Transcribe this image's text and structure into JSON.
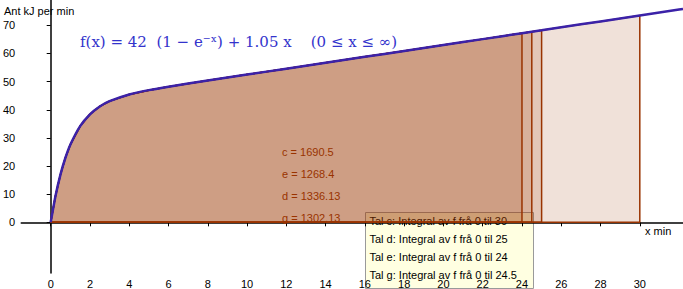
{
  "chart_data": {
    "type": "line",
    "title": "f(x) = 42  (1 − e⁻ˣ) + 1.05 x    (0 ≤ x ≤ ∞)",
    "x_label": "x min",
    "y_label": "Ant kJ per min",
    "x": [
      0,
      0.25,
      0.5,
      0.75,
      1,
      1.5,
      2,
      2.5,
      3,
      4,
      5,
      6,
      8,
      10,
      12,
      14,
      16,
      18,
      20,
      22,
      24,
      24.5,
      25,
      26,
      28,
      30,
      32,
      32.2
    ],
    "values": [
      0,
      9.55,
      17.05,
      22.95,
      27.6,
      34.2,
      38.4,
      41.18,
      43.06,
      45.43,
      46.97,
      48.2,
      50.39,
      52.5,
      54.6,
      56.7,
      58.8,
      60.9,
      63,
      65.1,
      67.2,
      67.73,
      68.25,
      69.3,
      71.4,
      73.5,
      75.6,
      75.81
    ],
    "color": "#3b22a8",
    "xlim": [
      -1.5,
      32.2
    ],
    "ylim": [
      -18,
      79
    ],
    "xticks": [
      0,
      2,
      4,
      6,
      8,
      10,
      12,
      14,
      16,
      18,
      20,
      22,
      24,
      26,
      28,
      30
    ],
    "yticks": [
      0,
      10,
      20,
      30,
      40,
      50,
      60,
      70
    ],
    "grid": false,
    "integrals": [
      {
        "text": "c = 1690.5",
        "from": 0,
        "to": 30
      },
      {
        "text": "e = 1268.4",
        "from": 0,
        "to": 24
      },
      {
        "text": "d = 1336.13",
        "from": 0,
        "to": 25
      },
      {
        "text": "g = 1302.13",
        "from": 0,
        "to": 24.5
      }
    ],
    "info_box": [
      "Tal c: Integral av f frå 0 til 30",
      "Tal d: Integral av f frå 0 til 25",
      "Tal e: Integral av f frå 0 til 24",
      "Tal g: Integral av f frå 0 til 24.5"
    ]
  }
}
